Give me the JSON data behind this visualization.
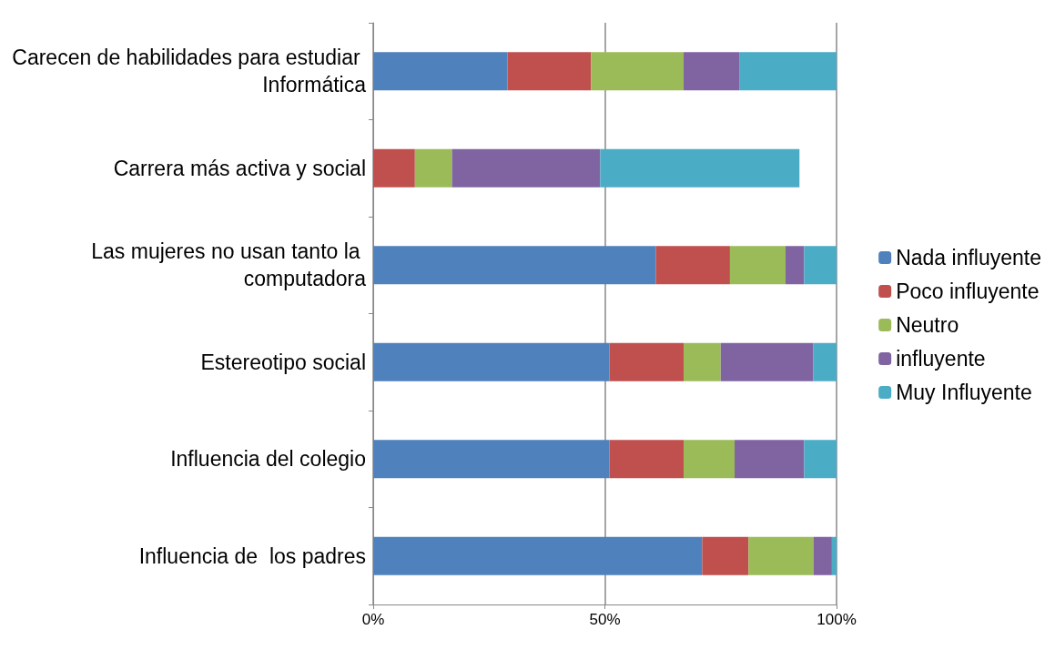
{
  "chart_data": {
    "type": "bar",
    "orientation": "horizontal",
    "stacked": true,
    "categories": [
      "Carecen de habilidades para estudiar Informática",
      "Carrera más activa y social",
      "Las mujeres no usan tanto la computadora",
      "Estereotipo social",
      "Influencia del colegio",
      "Influencia de  los padres"
    ],
    "series": [
      {
        "name": "Nada influyente",
        "color": "#4f81bd",
        "values": [
          29,
          0,
          61,
          51,
          51,
          71
        ]
      },
      {
        "name": "Poco influyente",
        "color": "#c0504d",
        "values": [
          18,
          9,
          16,
          16,
          16,
          10
        ]
      },
      {
        "name": "Neutro",
        "color": "#9bbb59",
        "values": [
          20,
          8,
          12,
          8,
          11,
          14
        ]
      },
      {
        "name": "influyente",
        "color": "#8064a2",
        "values": [
          12,
          32,
          4,
          20,
          15,
          4
        ]
      },
      {
        "name": "Muy Influyente",
        "color": "#4bacc6",
        "values": [
          21,
          43,
          7,
          5,
          7,
          1
        ]
      }
    ],
    "xlim": [
      0,
      100
    ],
    "xticks": [
      {
        "value": 0,
        "label": "0%"
      },
      {
        "value": 50,
        "label": "50%"
      },
      {
        "value": 100,
        "label": "100%"
      }
    ],
    "grid": "x",
    "legend": "right"
  }
}
